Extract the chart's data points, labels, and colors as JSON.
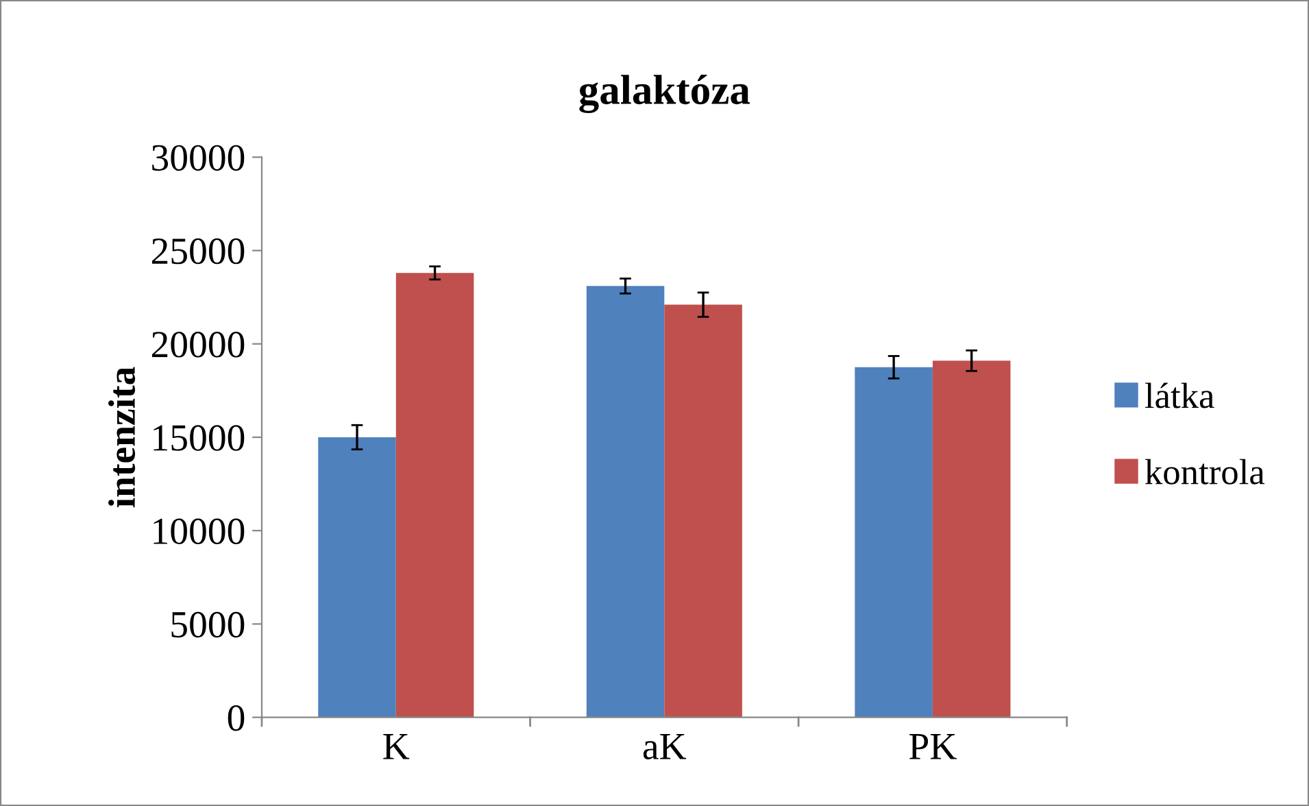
{
  "chart_data": {
    "type": "bar",
    "title": "galaktóza",
    "ylabel": "intenzita",
    "categories": [
      "K",
      "aK",
      "PK"
    ],
    "series": [
      {
        "name": "látka",
        "color": "#4f81bd",
        "values": [
          15000,
          23100,
          18750
        ],
        "errors": [
          650,
          400,
          600
        ]
      },
      {
        "name": "kontrola",
        "color": "#c0504d",
        "values": [
          23800,
          22100,
          19100
        ],
        "errors": [
          350,
          650,
          550
        ]
      }
    ],
    "ylim": [
      0,
      30000
    ],
    "yticks": [
      0,
      5000,
      10000,
      15000,
      20000,
      25000,
      30000
    ],
    "grid": false,
    "legend": "right"
  }
}
